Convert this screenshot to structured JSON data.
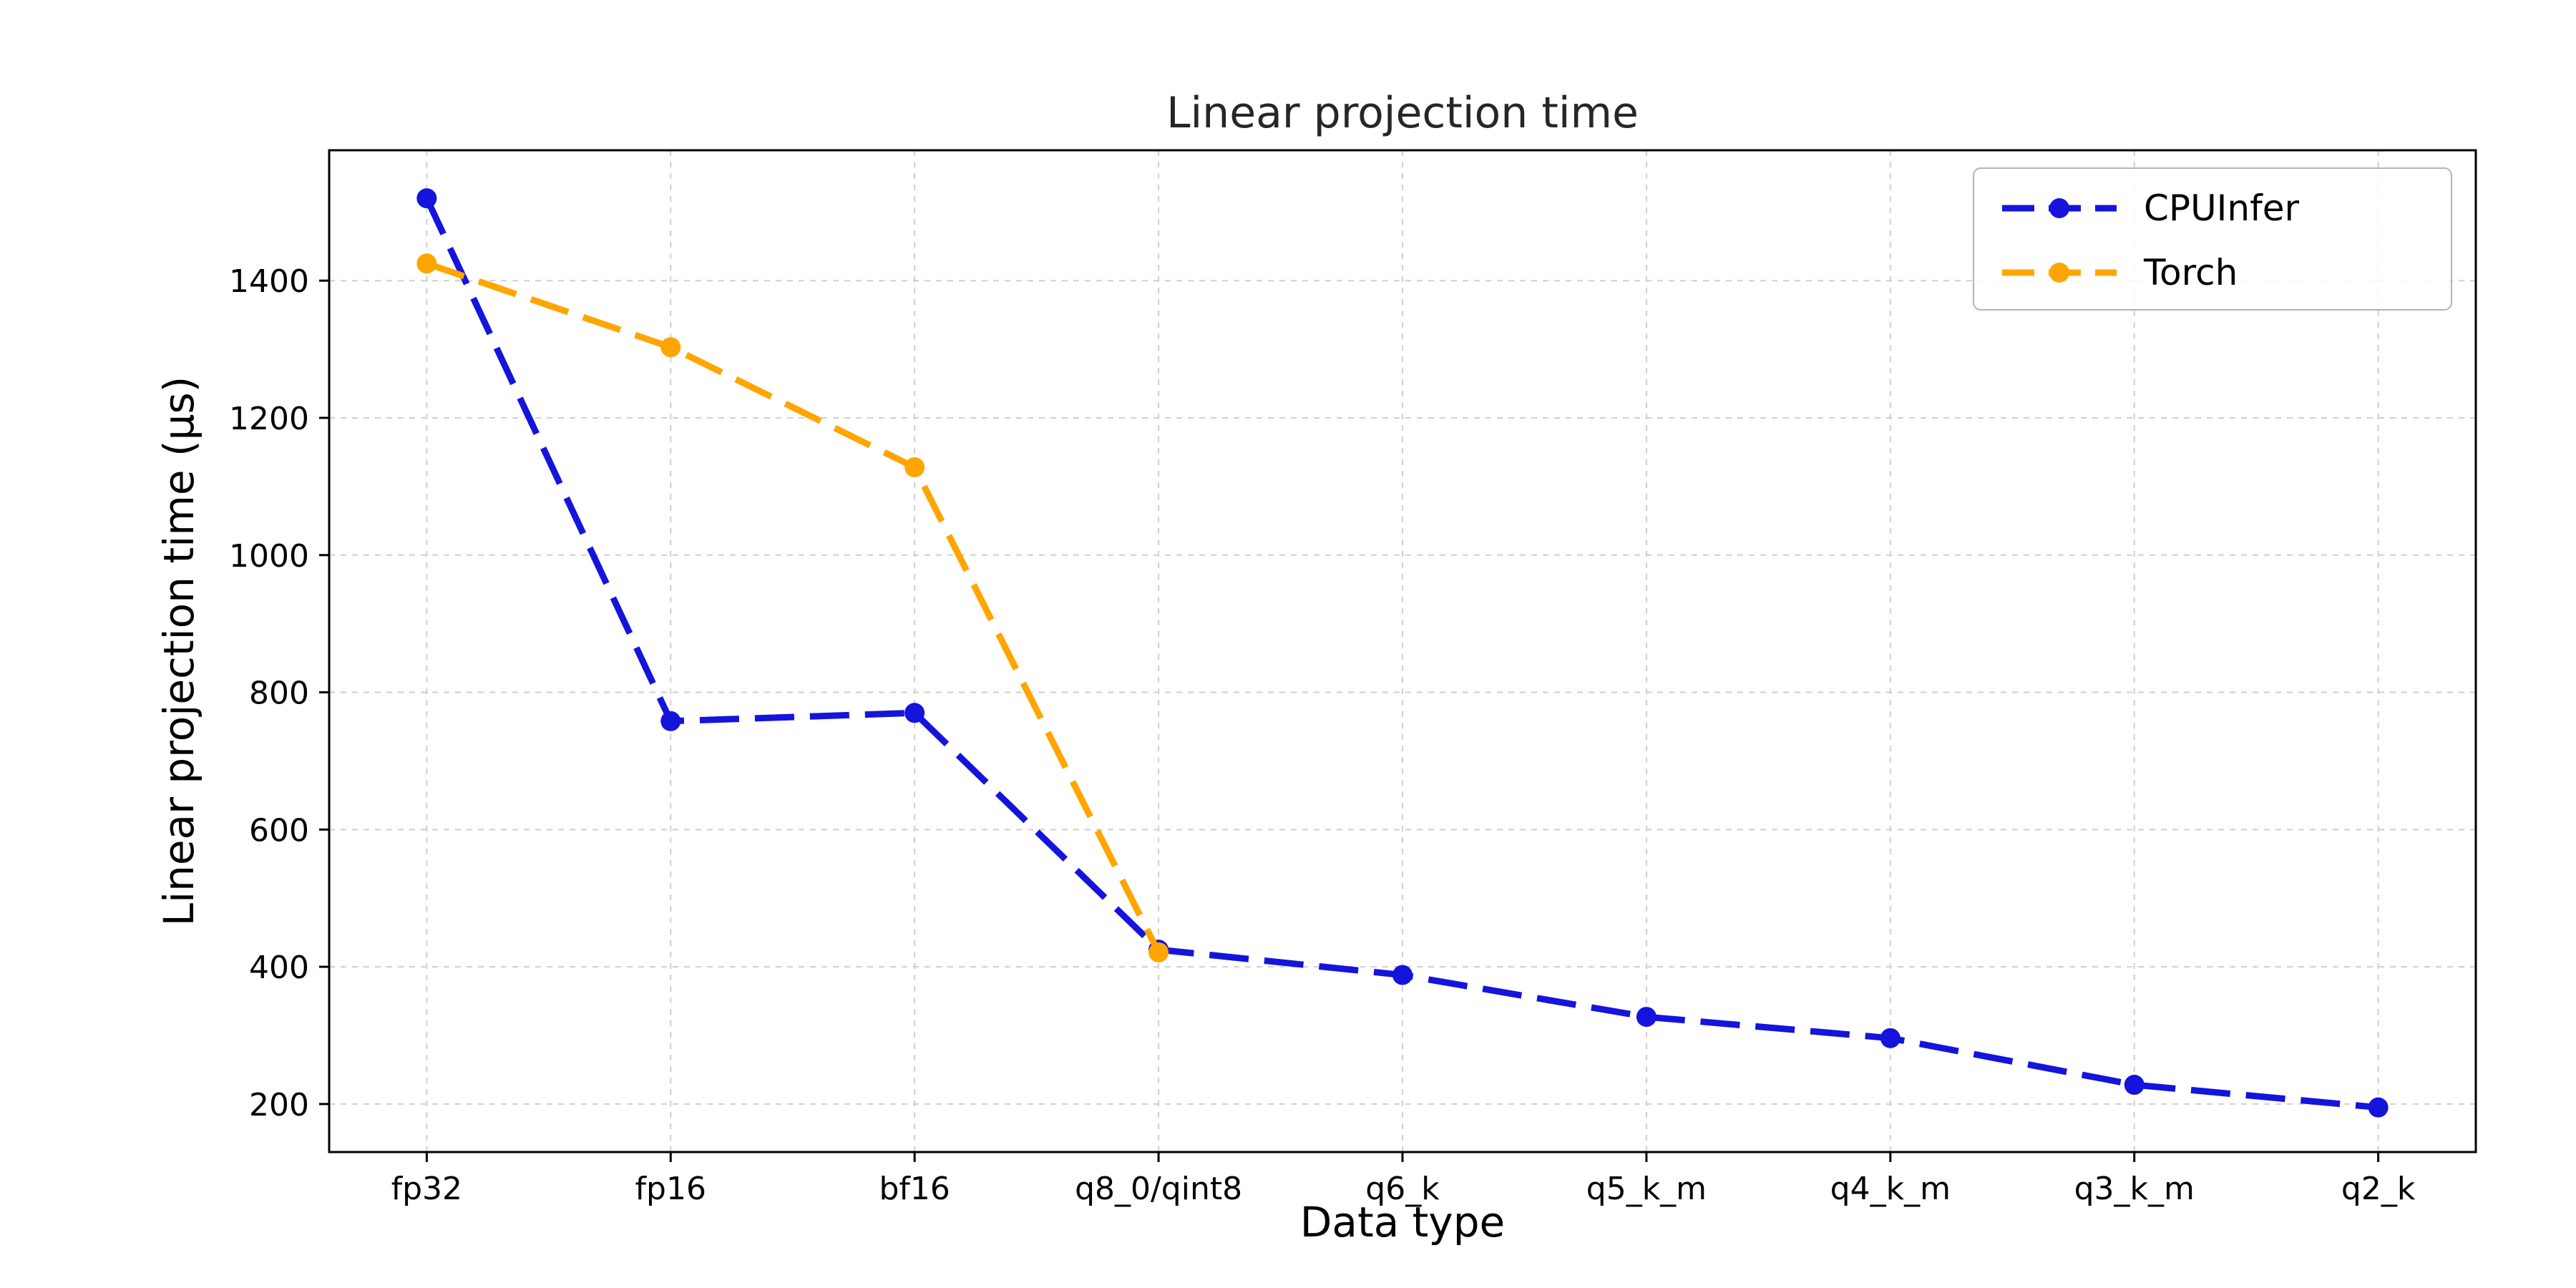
{
  "chart_data": {
    "type": "line",
    "title": "Linear projection time",
    "xlabel": "Data type",
    "ylabel": "Linear projection time (μs)",
    "categories": [
      "fp32",
      "fp16",
      "bf16",
      "q8_0/qint8",
      "q6_k",
      "q5_k_m",
      "q4_k_m",
      "q3_k_m",
      "q2_k"
    ],
    "series": [
      {
        "name": "CPUInfer",
        "color": "#1414dc",
        "values": [
          1520,
          758,
          770,
          425,
          388,
          327,
          296,
          228,
          195
        ]
      },
      {
        "name": "Torch",
        "color": "#ffa500",
        "values": [
          1425,
          1303,
          1128,
          421,
          null,
          null,
          null,
          null,
          null
        ]
      }
    ],
    "yticks": [
      200,
      400,
      600,
      800,
      1000,
      1200,
      1400
    ],
    "ylim": [
      130,
      1590
    ],
    "grid": true,
    "legend_position": "upper right",
    "line_style": "dashed",
    "marker": "circle",
    "background": "#ffffff"
  }
}
